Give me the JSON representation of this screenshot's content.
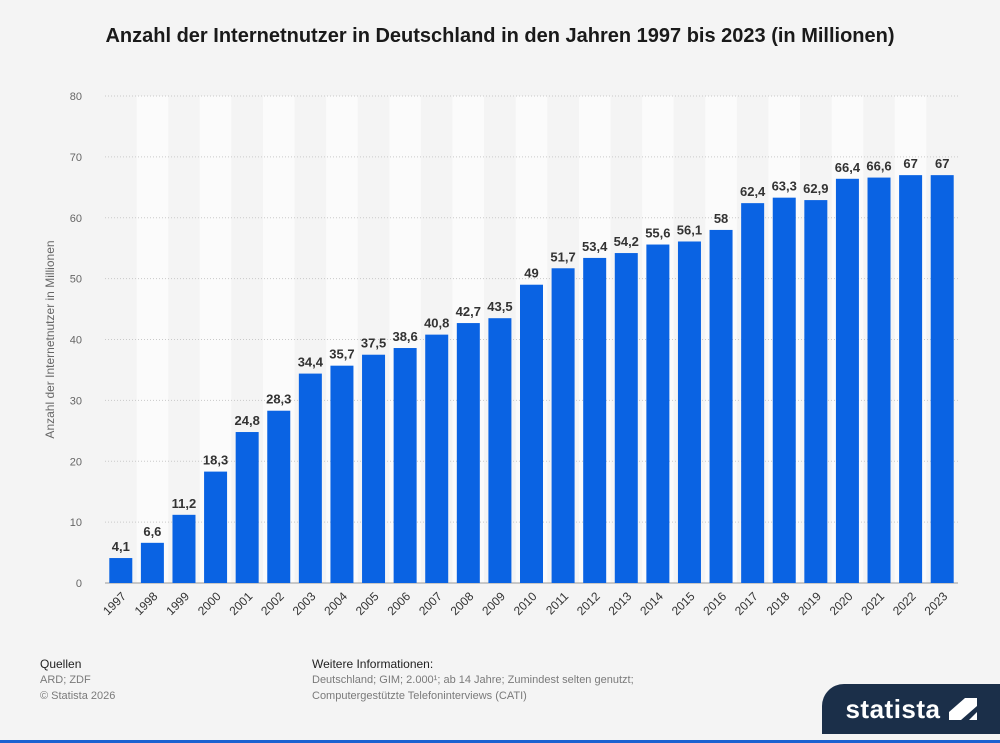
{
  "title": "Anzahl der Internetnutzer in Deutschland in den Jahren 1997 bis 2023 (in Millionen)",
  "chart_data": {
    "type": "bar",
    "title": "Anzahl der Internetnutzer in Deutschland in den Jahren 1997 bis 2023 (in Millionen)",
    "xlabel": "",
    "ylabel": "Anzahl der Internetnutzer in Millionen",
    "ylim": [
      0,
      80
    ],
    "yticks": [
      0,
      10,
      20,
      30,
      40,
      50,
      60,
      70,
      80
    ],
    "grid": true,
    "bar_color": "#0a63e3",
    "categories": [
      "1997",
      "1998",
      "1999",
      "2000",
      "2001",
      "2002",
      "2003",
      "2004",
      "2005",
      "2006",
      "2007",
      "2008",
      "2009",
      "2010",
      "2011",
      "2012",
      "2013",
      "2014",
      "2015",
      "2016",
      "2017",
      "2018",
      "2019",
      "2020",
      "2021",
      "2022",
      "2023"
    ],
    "values": [
      4.1,
      6.6,
      11.2,
      18.3,
      24.8,
      28.3,
      34.4,
      35.7,
      37.5,
      38.6,
      40.8,
      42.7,
      43.5,
      49,
      51.7,
      53.4,
      54.2,
      55.6,
      56.1,
      58,
      62.4,
      63.3,
      62.9,
      66.4,
      66.6,
      67,
      67
    ],
    "value_labels": [
      "4,1",
      "6,6",
      "11,2",
      "18,3",
      "24,8",
      "28,3",
      "34,4",
      "35,7",
      "37,5",
      "38,6",
      "40,8",
      "42,7",
      "43,5",
      "49",
      "51,7",
      "53,4",
      "54,2",
      "55,6",
      "56,1",
      "58",
      "62,4",
      "63,3",
      "62,9",
      "66,4",
      "66,6",
      "67",
      "67"
    ]
  },
  "footer": {
    "sources_heading": "Quellen",
    "sources": "ARD; ZDF",
    "copyright": "© Statista 2026",
    "info_heading": "Weitere Informationen:",
    "info_line1": "Deutschland; GIM; 2.000¹; ab 14 Jahre; Zumindest selten genutzt;",
    "info_line2": "Computergestützte Telefoninterviews (CATI)"
  },
  "logo_text": "statista",
  "logo_icon": "statista-logo-icon"
}
